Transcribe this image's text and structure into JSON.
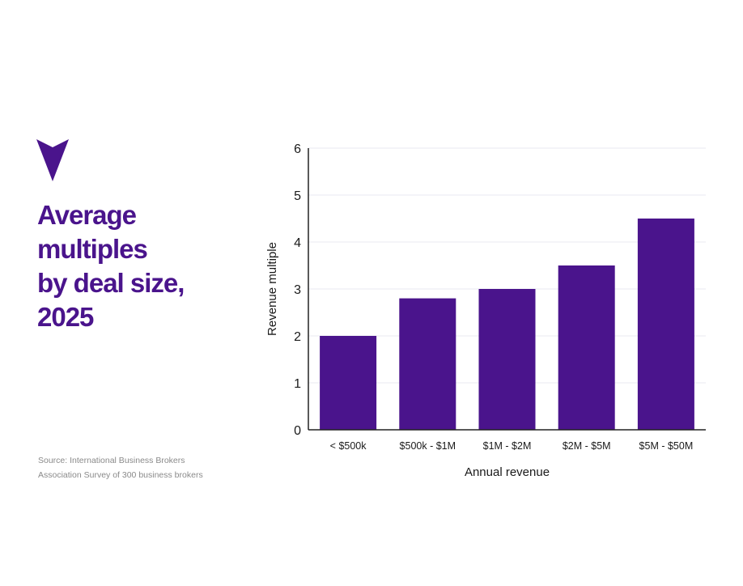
{
  "title_lines": [
    "Average",
    "multiples",
    "by deal size,",
    "2025"
  ],
  "source_lines": [
    "Source: International Business Brokers",
    "Association Survey of 300 business brokers"
  ],
  "colors": {
    "accent": "#4a148c",
    "bar": "#4a148c",
    "grid": "#e9e9f2",
    "axis": "#222222",
    "text": "#1a1a1a"
  },
  "marker_icon": "arrowhead-down-icon",
  "chart_data": {
    "type": "bar",
    "title": "Average multiples by deal size, 2025",
    "categories": [
      "< $500k",
      "$500k - $1M",
      "$1M - $2M",
      "$2M - $5M",
      "$5M - $50M"
    ],
    "values": [
      2.0,
      2.8,
      3.0,
      3.5,
      4.5
    ],
    "xlabel": "Annual revenue",
    "ylabel": "Revenue multiple",
    "ylim": [
      0,
      6
    ],
    "yticks": [
      0,
      1,
      2,
      3,
      4,
      5,
      6
    ],
    "grid": true,
    "legend": "none"
  }
}
